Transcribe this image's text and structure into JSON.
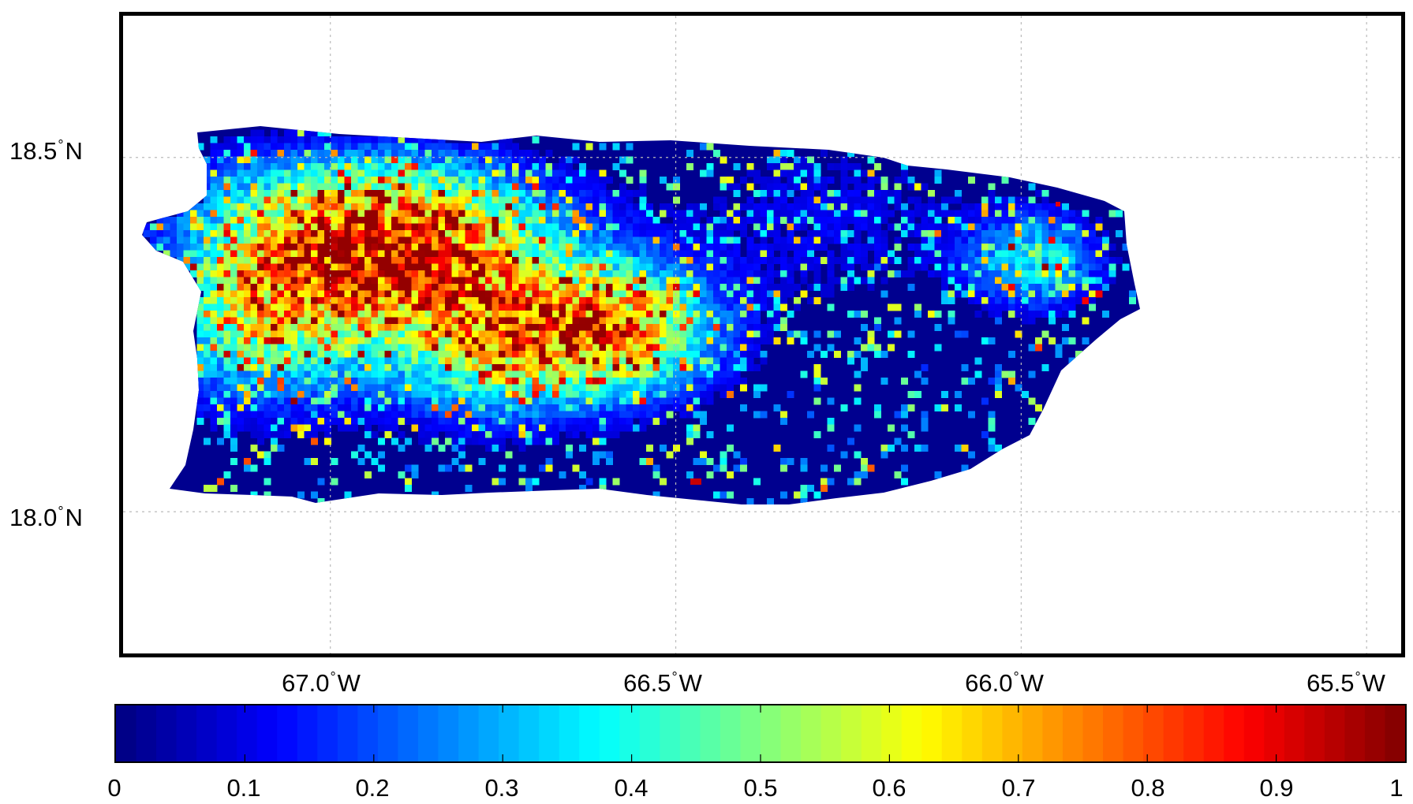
{
  "map": {
    "lat_labels": [
      {
        "value": 18.5,
        "text": "18.5",
        "suffix": "N"
      },
      {
        "value": 18.0,
        "text": "18.0",
        "suffix": "N"
      }
    ],
    "lon_labels": [
      {
        "value": -67.0,
        "text": "67.0",
        "suffix": "W"
      },
      {
        "value": -66.5,
        "text": "66.5",
        "suffix": "W"
      },
      {
        "value": -66.0,
        "text": "66.0",
        "suffix": "W"
      },
      {
        "value": -65.5,
        "text": "65.5",
        "suffix": "W"
      }
    ],
    "degree_symbol": "°",
    "grid": true,
    "lat_range": [
      17.8,
      18.7
    ],
    "lon_range": [
      -67.3,
      -65.45
    ],
    "region": "Puerto Rico"
  },
  "colorbar": {
    "colormap": "jet",
    "range": [
      0,
      1
    ],
    "tick_labels": [
      "0",
      "0.1",
      "0.2",
      "0.3",
      "0.4",
      "0.5",
      "0.6",
      "0.7",
      "0.8",
      "0.9",
      "1"
    ],
    "levels": 64
  },
  "colors": {
    "background": "#00008F",
    "frame": "#000000",
    "grid": "#bbbbbb"
  }
}
